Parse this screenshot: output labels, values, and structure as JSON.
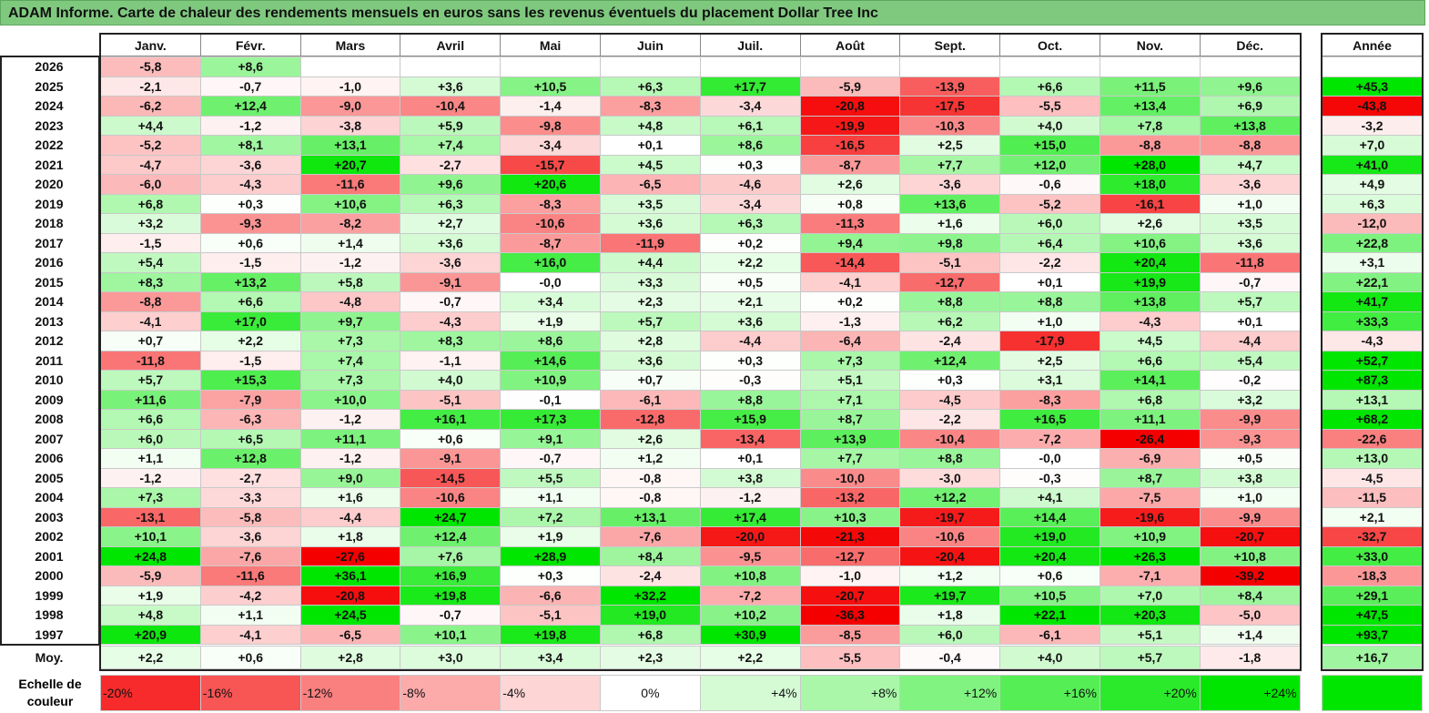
{
  "title": "ADAM Informe. Carte de chaleur des rendements mensuels en euros sans les revenus éventuels du placement Dollar Tree Inc",
  "chart_data": {
    "type": "heatmap",
    "title": "ADAM Informe. Carte de chaleur des rendements mensuels en euros sans les revenus éventuels du placement Dollar Tree Inc",
    "months": [
      "Janv.",
      "Févr.",
      "Mars",
      "Avril",
      "Mai",
      "Juin",
      "Juil.",
      "Août",
      "Sept.",
      "Oct.",
      "Nov.",
      "Déc."
    ],
    "year_header": "Année",
    "rows": [
      {
        "year": "2026",
        "values": [
          "-5,8",
          "+8,6",
          "",
          "",
          "",
          "",
          "",
          "",
          "",
          "",
          "",
          ""
        ],
        "annual": ""
      },
      {
        "year": "2025",
        "values": [
          "-2,1",
          "-0,7",
          "-1,0",
          "+3,6",
          "+10,5",
          "+6,3",
          "+17,7",
          "-5,9",
          "-13,9",
          "+6,6",
          "+11,5",
          "+9,6"
        ],
        "annual": "+45,3"
      },
      {
        "year": "2024",
        "values": [
          "-6,2",
          "+12,4",
          "-9,0",
          "-10,4",
          "-1,4",
          "-8,3",
          "-3,4",
          "-20,8",
          "-17,5",
          "-5,5",
          "+13,4",
          "+6,9"
        ],
        "annual": "-43,8"
      },
      {
        "year": "2023",
        "values": [
          "+4,4",
          "-1,2",
          "-3,8",
          "+5,9",
          "-9,8",
          "+4,8",
          "+6,1",
          "-19,9",
          "-10,3",
          "+4,0",
          "+7,8",
          "+13,8"
        ],
        "annual": "-3,2"
      },
      {
        "year": "2022",
        "values": [
          "-5,2",
          "+8,1",
          "+13,1",
          "+7,4",
          "-3,4",
          "+0,1",
          "+8,6",
          "-16,5",
          "+2,5",
          "+15,0",
          "-8,8",
          "-8,8"
        ],
        "annual": "+7,0"
      },
      {
        "year": "2021",
        "values": [
          "-4,7",
          "-3,6",
          "+20,7",
          "-2,7",
          "-15,7",
          "+4,5",
          "+0,3",
          "-8,7",
          "+7,7",
          "+12,0",
          "+28,0",
          "+4,7"
        ],
        "annual": "+41,0"
      },
      {
        "year": "2020",
        "values": [
          "-6,0",
          "-4,3",
          "-11,6",
          "+9,6",
          "+20,6",
          "-6,5",
          "-4,6",
          "+2,6",
          "-3,6",
          "-0,6",
          "+18,0",
          "-3,6"
        ],
        "annual": "+4,9"
      },
      {
        "year": "2019",
        "values": [
          "+6,8",
          "+0,3",
          "+10,6",
          "+6,3",
          "-8,3",
          "+3,5",
          "-3,4",
          "+0,8",
          "+13,6",
          "-5,2",
          "-16,1",
          "+1,0"
        ],
        "annual": "+6,3"
      },
      {
        "year": "2018",
        "values": [
          "+3,2",
          "-9,3",
          "-8,2",
          "+2,7",
          "-10,6",
          "+3,6",
          "+6,3",
          "-11,3",
          "+1,6",
          "+6,0",
          "+2,6",
          "+3,5"
        ],
        "annual": "-12,0"
      },
      {
        "year": "2017",
        "values": [
          "-1,5",
          "+0,6",
          "+1,4",
          "+3,6",
          "-8,7",
          "-11,9",
          "+0,2",
          "+9,4",
          "+9,8",
          "+6,4",
          "+10,6",
          "+3,6"
        ],
        "annual": "+22,8"
      },
      {
        "year": "2016",
        "values": [
          "+5,4",
          "-1,5",
          "-1,2",
          "-3,6",
          "+16,0",
          "+4,4",
          "+2,2",
          "-14,4",
          "-5,1",
          "-2,2",
          "+20,4",
          "-11,8"
        ],
        "annual": "+3,1"
      },
      {
        "year": "2015",
        "values": [
          "+8,3",
          "+13,2",
          "+5,8",
          "-9,1",
          "-0,0",
          "+3,3",
          "+0,5",
          "-4,1",
          "-12,7",
          "+0,1",
          "+19,9",
          "-0,7"
        ],
        "annual": "+22,1"
      },
      {
        "year": "2014",
        "values": [
          "-8,8",
          "+6,6",
          "-4,8",
          "-0,7",
          "+3,4",
          "+2,3",
          "+2,1",
          "+0,2",
          "+8,8",
          "+8,8",
          "+13,8",
          "+5,7"
        ],
        "annual": "+41,7"
      },
      {
        "year": "2013",
        "values": [
          "-4,1",
          "+17,0",
          "+9,7",
          "-4,3",
          "+1,9",
          "+5,7",
          "+3,6",
          "-1,3",
          "+6,2",
          "+1,0",
          "-4,3",
          "+0,1"
        ],
        "annual": "+33,3"
      },
      {
        "year": "2012",
        "values": [
          "+0,7",
          "+2,2",
          "+7,3",
          "+8,3",
          "+8,6",
          "+2,8",
          "-4,4",
          "-6,4",
          "-2,4",
          "-17,9",
          "+4,5",
          "-4,4"
        ],
        "annual": "-4,3"
      },
      {
        "year": "2011",
        "values": [
          "-11,8",
          "-1,5",
          "+7,4",
          "-1,1",
          "+14,6",
          "+3,6",
          "+0,3",
          "+7,3",
          "+12,4",
          "+2,5",
          "+6,6",
          "+5,4"
        ],
        "annual": "+52,7"
      },
      {
        "year": "2010",
        "values": [
          "+5,7",
          "+15,3",
          "+7,3",
          "+4,0",
          "+10,9",
          "+0,7",
          "-0,3",
          "+5,1",
          "+0,3",
          "+3,1",
          "+14,1",
          "-0,2"
        ],
        "annual": "+87,3"
      },
      {
        "year": "2009",
        "values": [
          "+11,6",
          "-7,9",
          "+10,0",
          "-5,1",
          "-0,1",
          "-6,1",
          "+8,8",
          "+7,1",
          "-4,5",
          "-8,3",
          "+6,8",
          "+3,2"
        ],
        "annual": "+13,1"
      },
      {
        "year": "2008",
        "values": [
          "+6,6",
          "-6,3",
          "-1,2",
          "+16,1",
          "+17,3",
          "-12,8",
          "+15,9",
          "+8,7",
          "-2,2",
          "+16,5",
          "+11,1",
          "-9,9"
        ],
        "annual": "+68,2"
      },
      {
        "year": "2007",
        "values": [
          "+6,0",
          "+6,5",
          "+11,1",
          "+0,6",
          "+9,1",
          "+2,6",
          "-13,4",
          "+13,9",
          "-10,4",
          "-7,2",
          "-26,4",
          "-9,3"
        ],
        "annual": "-22,6"
      },
      {
        "year": "2006",
        "values": [
          "+1,1",
          "+12,8",
          "-1,2",
          "-9,1",
          "-0,7",
          "+1,2",
          "+0,1",
          "+7,7",
          "+8,8",
          "-0,0",
          "-6,9",
          "+0,5"
        ],
        "annual": "+13,0"
      },
      {
        "year": "2005",
        "values": [
          "-1,2",
          "-2,7",
          "+9,0",
          "-14,5",
          "+5,5",
          "-0,8",
          "+3,8",
          "-10,0",
          "-3,0",
          "-0,3",
          "+8,7",
          "+3,8"
        ],
        "annual": "-4,5"
      },
      {
        "year": "2004",
        "values": [
          "+7,3",
          "-3,3",
          "+1,6",
          "-10,6",
          "+1,1",
          "-0,8",
          "-1,2",
          "-13,2",
          "+12,2",
          "+4,1",
          "-7,5",
          "+1,0"
        ],
        "annual": "-11,5"
      },
      {
        "year": "2003",
        "values": [
          "-13,1",
          "-5,8",
          "-4,4",
          "+24,7",
          "+7,2",
          "+13,1",
          "+17,4",
          "+10,3",
          "-19,7",
          "+14,4",
          "-19,6",
          "-9,9"
        ],
        "annual": "+2,1"
      },
      {
        "year": "2002",
        "values": [
          "+10,1",
          "-3,6",
          "+1,8",
          "+12,4",
          "+1,9",
          "-7,6",
          "-20,0",
          "-21,3",
          "-10,6",
          "+19,0",
          "+10,9",
          "-20,7"
        ],
        "annual": "-32,7"
      },
      {
        "year": "2001",
        "values": [
          "+24,8",
          "-7,6",
          "-27,6",
          "+7,6",
          "+28,9",
          "+8,4",
          "-9,5",
          "-12,7",
          "-20,4",
          "+20,4",
          "+26,3",
          "+10,8"
        ],
        "annual": "+33,0"
      },
      {
        "year": "2000",
        "values": [
          "-5,9",
          "-11,6",
          "+36,1",
          "+16,9",
          "+0,3",
          "-2,4",
          "+10,8",
          "-1,0",
          "+1,2",
          "+0,6",
          "-7,1",
          "-39,2"
        ],
        "annual": "-18,3"
      },
      {
        "year": "1999",
        "values": [
          "+1,9",
          "-4,2",
          "-20,8",
          "+19,8",
          "-6,6",
          "+32,2",
          "-7,2",
          "-20,7",
          "+19,7",
          "+10,5",
          "+7,0",
          "+8,4"
        ],
        "annual": "+29,1"
      },
      {
        "year": "1998",
        "values": [
          "+4,8",
          "+1,1",
          "+24,5",
          "-0,7",
          "-5,1",
          "+19,0",
          "+10,2",
          "-36,3",
          "+1,8",
          "+22,1",
          "+20,3",
          "-5,0"
        ],
        "annual": "+47,5"
      },
      {
        "year": "1997",
        "values": [
          "+20,9",
          "-4,1",
          "-6,5",
          "+10,1",
          "+19,8",
          "+6,8",
          "+30,9",
          "-8,5",
          "+6,0",
          "-6,1",
          "+5,1",
          "+1,4"
        ],
        "annual": "+93,7"
      }
    ],
    "average": {
      "label": "Moy.",
      "values": [
        "+2,2",
        "+0,6",
        "+2,8",
        "+3,0",
        "+3,4",
        "+2,3",
        "+2,2",
        "-5,5",
        "-0,4",
        "+4,0",
        "+5,7",
        "-1,8"
      ],
      "annual": "+16,7"
    },
    "scale": {
      "label": "Echelle de couleur",
      "stops": [
        "-20%",
        "-16%",
        "-12%",
        "-8%",
        "-4%",
        "0%",
        "+4%",
        "+8%",
        "+12%",
        "+16%",
        "+20%",
        "+24%"
      ]
    }
  }
}
